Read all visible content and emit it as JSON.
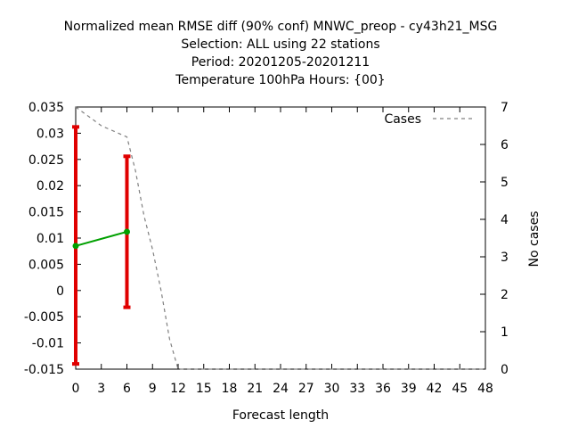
{
  "chart_data": {
    "type": "line",
    "title": [
      "Normalized mean RMSE diff (90% conf) MNWC_preop - cy43h21_MSG",
      "Selection: ALL using    22 stations",
      "Period: 20201205-20201211",
      "Temperature 100hPa   Hours: {00}"
    ],
    "xlabel": "Forecast length",
    "ylabel": "",
    "y2label": "No cases",
    "xlim": [
      0,
      48
    ],
    "ylim": [
      -0.015,
      0.035
    ],
    "y2lim": [
      0,
      7
    ],
    "xticks": [
      0,
      3,
      6,
      9,
      12,
      15,
      18,
      21,
      24,
      27,
      30,
      33,
      36,
      39,
      42,
      45,
      48
    ],
    "yticks": [
      "0.035",
      "0.03",
      "0.025",
      "0.02",
      "0.015",
      "0.01",
      "0.005",
      "0",
      "-0.005",
      "-0.01",
      "-0.015"
    ],
    "y2ticks": [
      7,
      6,
      5,
      4,
      3,
      2,
      1,
      0
    ],
    "legend_position": "top-right",
    "series": [
      {
        "name": "",
        "axis": "left",
        "color": "#00a000",
        "x": [
          0,
          6
        ],
        "y": [
          0.0085,
          0.0112
        ],
        "err_low": [
          -0.014,
          -0.0032
        ],
        "err_high": [
          0.0312,
          0.0256
        ],
        "err_color": "#e00000"
      },
      {
        "name": "Cases",
        "axis": "right",
        "color": "#808080",
        "style": "dashed",
        "x": [
          0,
          3,
          6,
          7,
          8,
          9,
          10,
          11,
          12,
          15,
          18,
          21,
          24,
          27,
          30,
          33,
          36,
          39,
          42,
          45,
          48
        ],
        "y": [
          7,
          6.5,
          6.2,
          5.3,
          4.1,
          3.2,
          2.1,
          0.8,
          0,
          0,
          0,
          0,
          0,
          0,
          0,
          0,
          0,
          0,
          0,
          0,
          0
        ]
      }
    ]
  }
}
